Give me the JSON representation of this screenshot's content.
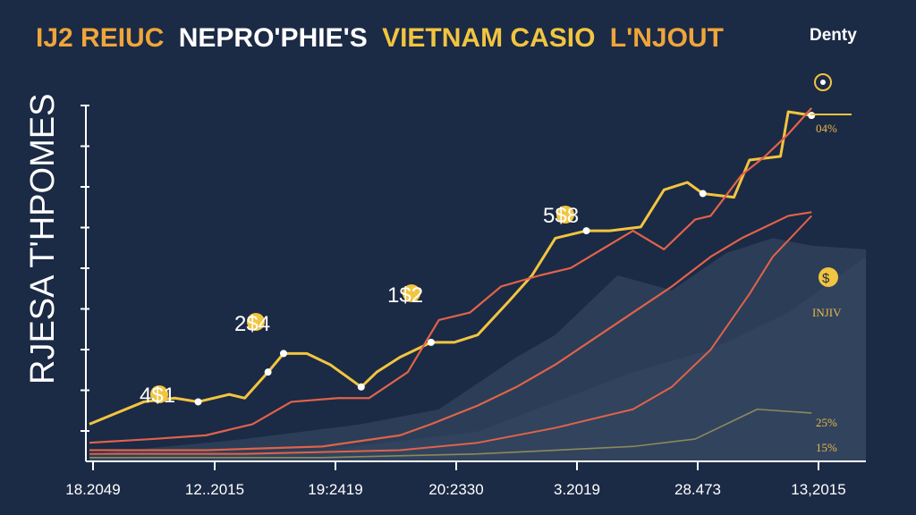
{
  "title": {
    "part1": "IJ2 REIUC",
    "part2": "NEPRO'PHIE'S",
    "part3": "VIETNAM CASIO",
    "part4": "L'NJOUT",
    "colors": [
      "#f0a53a",
      "#ffffff",
      "#f2c540",
      "#f0a53a"
    ]
  },
  "brand": "Denty",
  "colors": {
    "background": "#1b2a45",
    "yellow_line": "#f2c540",
    "red_line": "#e0634a",
    "area_fill": "#3a4c66",
    "coin": "#f2c540",
    "axis": "#ffffff"
  },
  "chart_data": {
    "type": "line",
    "ylabel": "RJESA T'HPOMES",
    "xlabel": "",
    "x_tick_labels": [
      "18.2049",
      "12..2015",
      "19:2419",
      "20:2330",
      "3.2019",
      "28.473",
      "13,2015"
    ],
    "grid": false,
    "series": [
      {
        "color": "#f2c540",
        "x": [
          0,
          0.07,
          0.11,
          0.14,
          0.18,
          0.2,
          0.23,
          0.25,
          0.28,
          0.31,
          0.35,
          0.37,
          0.4,
          0.44,
          0.47,
          0.5,
          0.54,
          0.57,
          0.6,
          0.64,
          0.67,
          0.71,
          0.74,
          0.77,
          0.79,
          0.83,
          0.85,
          0.89,
          0.9,
          0.93
        ],
        "y": [
          0.1,
          0.16,
          0.17,
          0.16,
          0.18,
          0.17,
          0.24,
          0.29,
          0.29,
          0.26,
          0.2,
          0.24,
          0.28,
          0.32,
          0.32,
          0.34,
          0.43,
          0.5,
          0.6,
          0.62,
          0.62,
          0.63,
          0.73,
          0.75,
          0.72,
          0.71,
          0.81,
          0.82,
          0.94,
          0.93
        ]
      },
      {
        "color": "#e0634a",
        "x": [
          0,
          0.08,
          0.15,
          0.21,
          0.26,
          0.32,
          0.36,
          0.41,
          0.45,
          0.49,
          0.53,
          0.58,
          0.62,
          0.66,
          0.7,
          0.74,
          0.78,
          0.8,
          0.84,
          0.87,
          0.9,
          0.93
        ],
        "y": [
          0.05,
          0.06,
          0.07,
          0.1,
          0.16,
          0.17,
          0.17,
          0.24,
          0.38,
          0.4,
          0.47,
          0.5,
          0.52,
          0.57,
          0.62,
          0.57,
          0.65,
          0.66,
          0.77,
          0.82,
          0.88,
          0.95
        ]
      },
      {
        "color": "#e0634a",
        "x": [
          0,
          0.15,
          0.3,
          0.4,
          0.44,
          0.5,
          0.55,
          0.6,
          0.65,
          0.7,
          0.75,
          0.8,
          0.84,
          0.9,
          0.93
        ],
        "y": [
          0.03,
          0.03,
          0.04,
          0.07,
          0.1,
          0.15,
          0.2,
          0.26,
          0.33,
          0.4,
          0.47,
          0.55,
          0.6,
          0.66,
          0.67
        ]
      },
      {
        "color": "#e0634a",
        "x": [
          0,
          0.2,
          0.4,
          0.5,
          0.6,
          0.7,
          0.75,
          0.8,
          0.85,
          0.88,
          0.93
        ],
        "y": [
          0.02,
          0.02,
          0.03,
          0.05,
          0.09,
          0.14,
          0.2,
          0.3,
          0.45,
          0.55,
          0.66
        ]
      },
      {
        "color": "#8a8a5c",
        "x": [
          0,
          0.3,
          0.5,
          0.6,
          0.7,
          0.78,
          0.83,
          0.86,
          0.93
        ],
        "y": [
          0.01,
          0.01,
          0.02,
          0.03,
          0.04,
          0.06,
          0.11,
          0.14,
          0.13
        ]
      }
    ],
    "annotations": [
      "4$1",
      "2$4",
      "1$2",
      "5$8",
      "$"
    ],
    "right_labels": [
      "04%",
      "$",
      "INJIV",
      "25%",
      "15%"
    ]
  }
}
